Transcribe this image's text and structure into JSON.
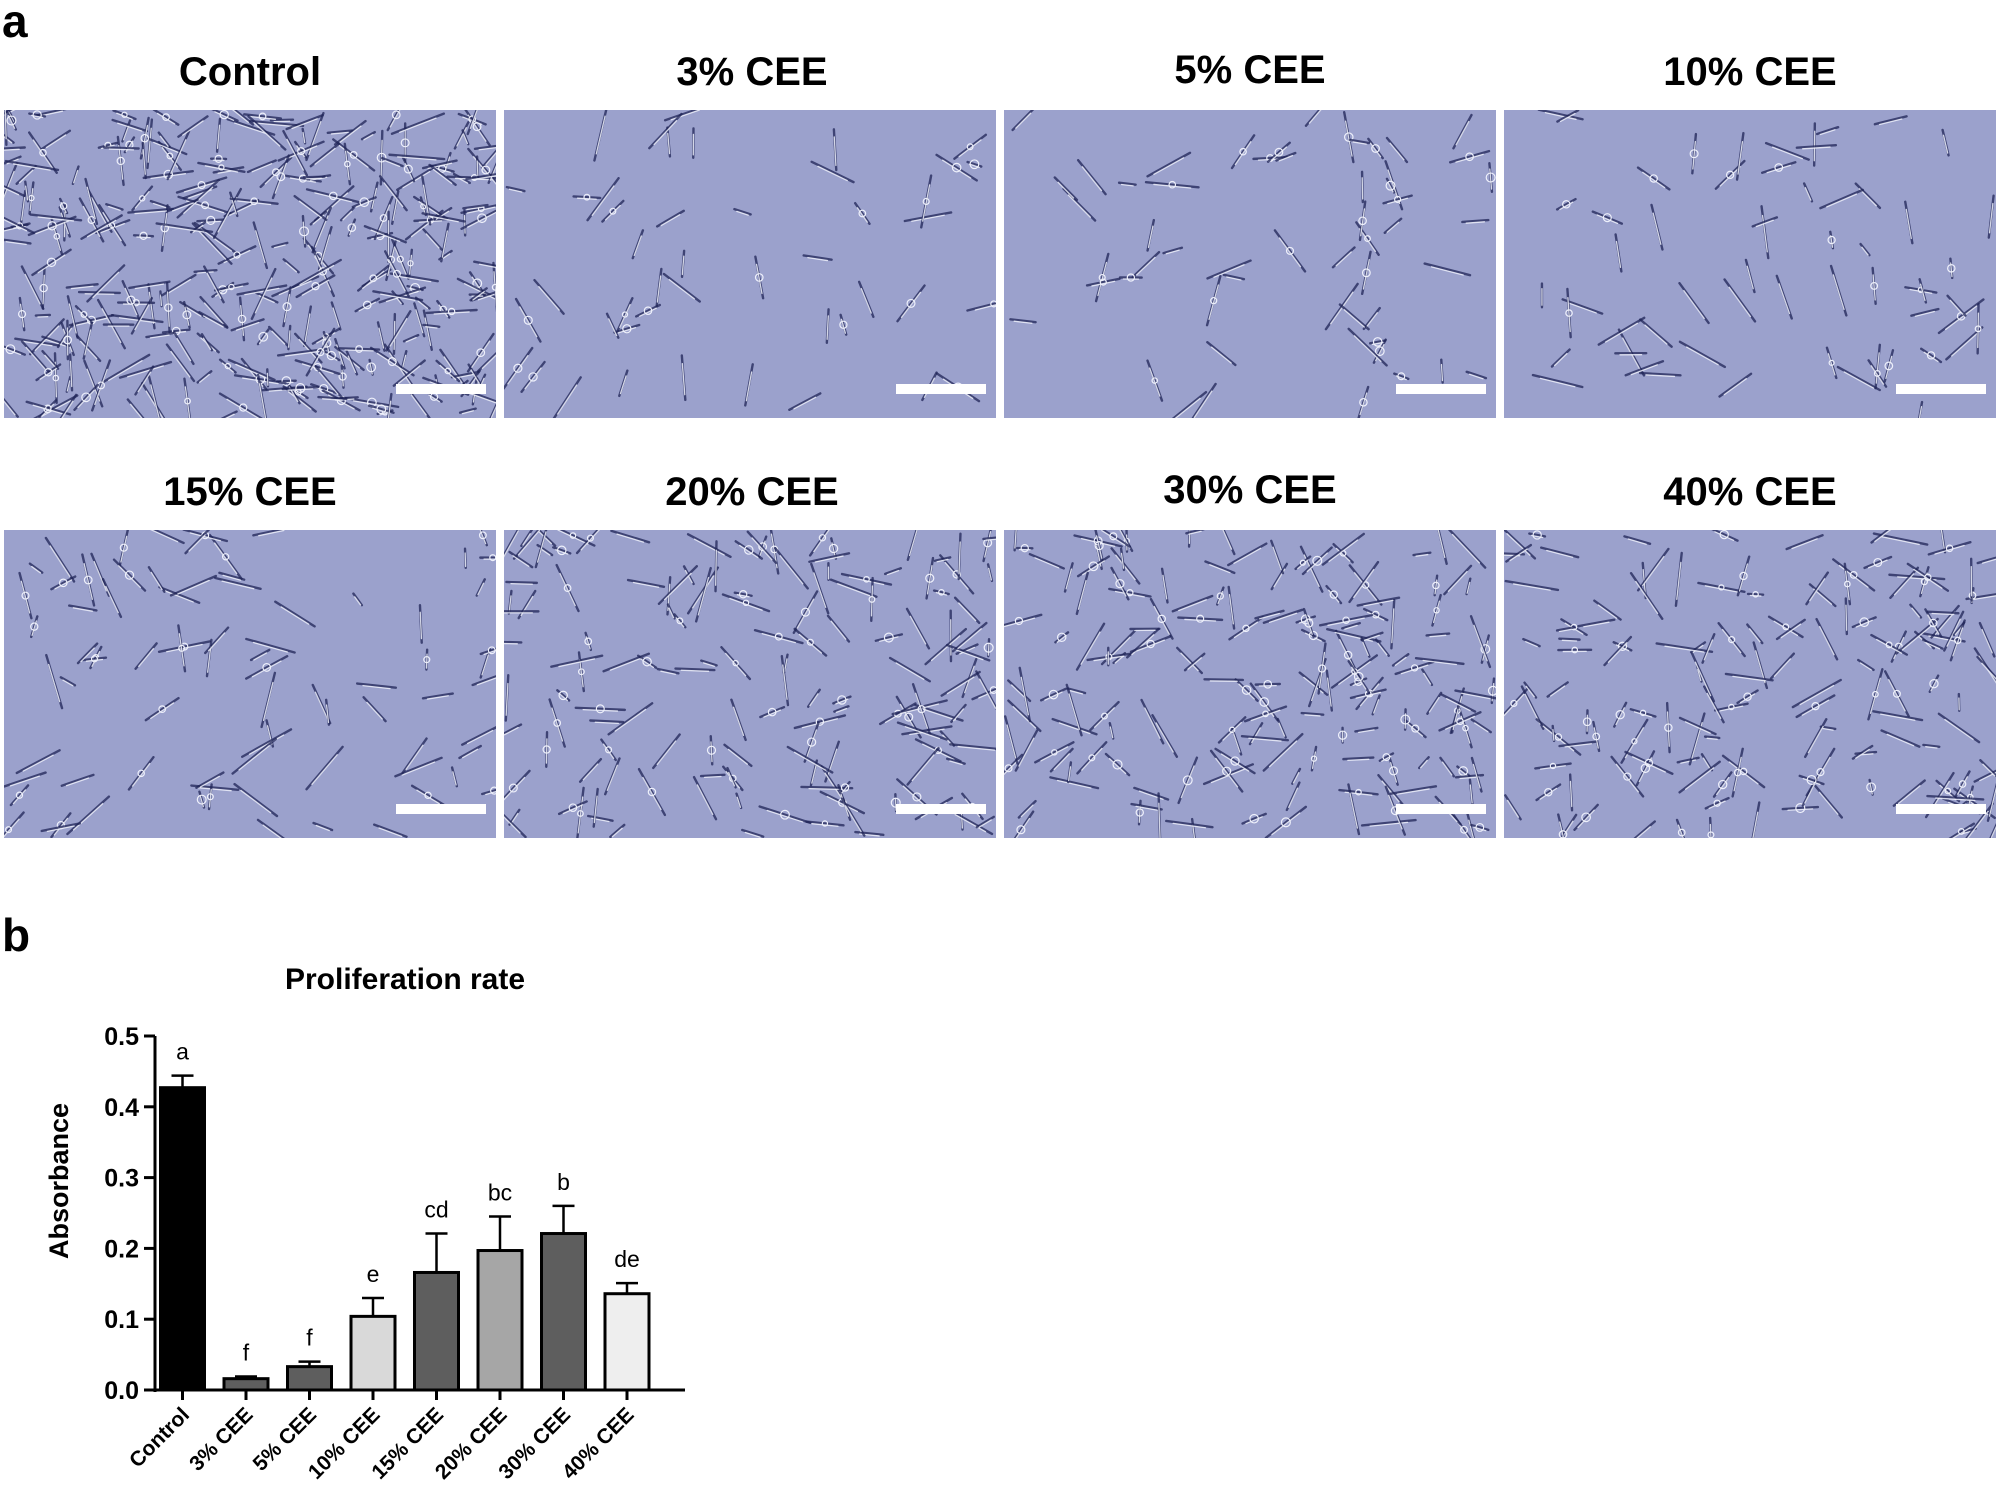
{
  "panel_a": {
    "letter": "a",
    "images": [
      {
        "title": "Control"
      },
      {
        "title": "3% CEE"
      },
      {
        "title": "5% CEE"
      },
      {
        "title": "10% CEE"
      },
      {
        "title": "15% CEE"
      },
      {
        "title": "20% CEE"
      },
      {
        "title": "30% CEE"
      },
      {
        "title": "40% CEE"
      }
    ],
    "colors": {
      "background": "#9ba1cc",
      "cell_dark": "#1f2457",
      "cell_light": "#eef0fb",
      "scalebar": "#ffffff"
    }
  },
  "panel_b": {
    "letter": "b"
  },
  "chart_data": {
    "type": "bar",
    "title": "Proliferation rate",
    "xlabel": "",
    "ylabel": "Absorbance",
    "ylim": [
      0,
      0.5
    ],
    "yticks": [
      "0.0",
      "0.1",
      "0.2",
      "0.3",
      "0.4",
      "0.5"
    ],
    "categories": [
      "Control",
      "3% CEE",
      "5% CEE",
      "10% CEE",
      "15% CEE",
      "20% CEE",
      "30% CEE",
      "40% CEE"
    ],
    "values": [
      0.427,
      0.016,
      0.033,
      0.104,
      0.166,
      0.197,
      0.221,
      0.136
    ],
    "errors": [
      0.017,
      0.003,
      0.007,
      0.026,
      0.055,
      0.048,
      0.039,
      0.015
    ],
    "significance_letters": [
      "a",
      "f",
      "f",
      "e",
      "cd",
      "bc",
      "b",
      "de"
    ],
    "bar_colors": [
      "#000000",
      "#5e5e5e",
      "#5e5e5e",
      "#d9d9d9",
      "#5e5e5e",
      "#a6a6a6",
      "#5e5e5e",
      "#eeeeee"
    ],
    "grid": false,
    "legend": "none"
  }
}
